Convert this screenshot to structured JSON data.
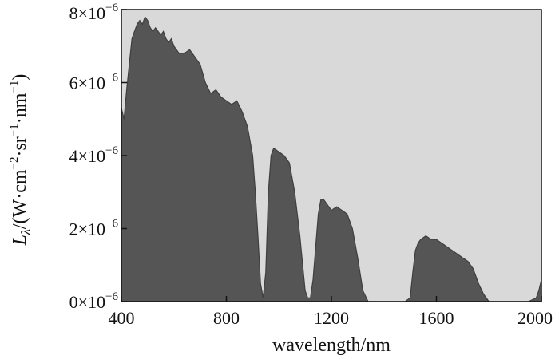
{
  "chart_data": {
    "type": "area",
    "title": "",
    "xlabel": "wavelength/nm",
    "ylabel": {
      "symbol": "L",
      "subscript": "λ",
      "unit_open": "/(W·cm",
      "exp1": "−2",
      "unit_mid": "·sr",
      "exp2": "−1",
      "unit_mid2": "·nm",
      "exp3": "−1",
      "unit_close": ")"
    },
    "xlim": [
      400,
      2000
    ],
    "ylim": [
      0,
      8e-06
    ],
    "x_ticks": [
      400,
      800,
      1200,
      1600,
      2000
    ],
    "x_tick_labels": [
      "400",
      "800",
      "1200",
      "1600",
      "2000"
    ],
    "y_ticks": [
      0,
      2e-06,
      4e-06,
      6e-06,
      8e-06
    ],
    "y_tick_labels": [
      {
        "mantissa": "0×10",
        "exponent": "−6"
      },
      {
        "mantissa": "2×10",
        "exponent": "−6"
      },
      {
        "mantissa": "4×10",
        "exponent": "−6"
      },
      {
        "mantissa": "6×10",
        "exponent": "−6"
      },
      {
        "mantissa": "8×10",
        "exponent": "−6"
      }
    ],
    "grid": false,
    "colors": {
      "plot_background": "#d9d9d9",
      "series": "#555555",
      "axes": "#111111"
    },
    "series": [
      {
        "x": [
          400,
          410,
          420,
          430,
          440,
          450,
          460,
          470,
          480,
          490,
          500,
          510,
          520,
          530,
          540,
          550,
          560,
          570,
          580,
          590,
          600,
          620,
          640,
          660,
          680,
          700,
          720,
          740,
          760,
          780,
          800,
          820,
          840,
          860,
          880,
          900,
          910,
          920,
          930,
          940,
          950,
          960,
          970,
          980,
          1000,
          1020,
          1040,
          1060,
          1080,
          1100,
          1110,
          1120,
          1130,
          1140,
          1150,
          1160,
          1170,
          1180,
          1200,
          1220,
          1240,
          1260,
          1280,
          1300,
          1320,
          1340,
          1360,
          1380,
          1400,
          1420,
          1440,
          1460,
          1480,
          1500,
          1510,
          1520,
          1530,
          1540,
          1560,
          1580,
          1600,
          1620,
          1640,
          1660,
          1680,
          1700,
          1720,
          1740,
          1760,
          1780,
          1800,
          1820,
          1850,
          1900,
          1950,
          1980,
          1990,
          2000
        ],
        "y": [
          5.3e-06,
          5e-06,
          5.8e-06,
          6.5e-06,
          7.2e-06,
          7.4e-06,
          7.6e-06,
          7.7e-06,
          7.6e-06,
          7.8e-06,
          7.7e-06,
          7.5e-06,
          7.4e-06,
          7.5e-06,
          7.4e-06,
          7.3e-06,
          7.4e-06,
          7.2e-06,
          7.1e-06,
          7.2e-06,
          7e-06,
          6.8e-06,
          6.8e-06,
          6.9e-06,
          6.7e-06,
          6.5e-06,
          6e-06,
          5.7e-06,
          5.8e-06,
          5.6e-06,
          5.5e-06,
          5.4e-06,
          5.5e-06,
          5.2e-06,
          4.8e-06,
          4e-06,
          3e-06,
          1.8e-06,
          5e-07,
          1e-07,
          8e-07,
          3e-06,
          4e-06,
          4.2e-06,
          4.1e-06,
          4e-06,
          3.8e-06,
          3e-06,
          1.8e-06,
          3e-07,
          1e-07,
          1e-07,
          6e-07,
          1.5e-06,
          2.4e-06,
          2.8e-06,
          2.8e-06,
          2.7e-06,
          2.5e-06,
          2.6e-06,
          2.5e-06,
          2.4e-06,
          2e-06,
          1.2e-06,
          3e-07,
          0,
          0,
          0,
          0,
          0,
          0,
          0,
          0,
          1e-07,
          8e-07,
          1.4e-06,
          1.6e-06,
          1.7e-06,
          1.8e-06,
          1.7e-06,
          1.7e-06,
          1.6e-06,
          1.5e-06,
          1.4e-06,
          1.3e-06,
          1.2e-06,
          1.1e-06,
          9e-07,
          5e-07,
          2e-07,
          0,
          0,
          0,
          0,
          0,
          1e-07,
          3e-07,
          6e-07
        ]
      }
    ]
  }
}
